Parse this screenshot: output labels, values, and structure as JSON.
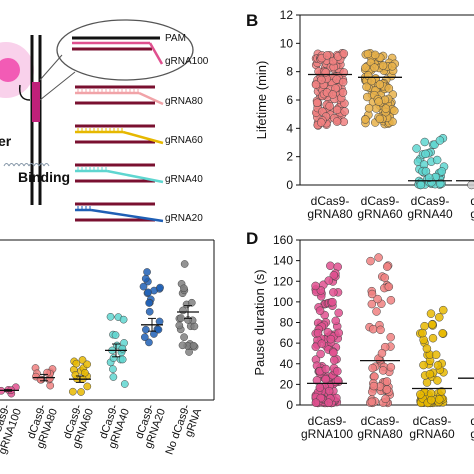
{
  "diagram": {
    "labels": [
      "PAM",
      "gRNA100",
      "gRNA80",
      "gRNA60",
      "gRNA40",
      "gRNA20"
    ],
    "left_text_1": "er",
    "left_text_2": "Binding",
    "colors": {
      "gRNA100": "#e0508f",
      "gRNA80": "#f1a3a8",
      "gRNA60": "#e6b800",
      "gRNA40": "#5fd6d0",
      "gRNA20": "#1f5fb5",
      "pam": "#111111",
      "strand": "#7a1030"
    }
  },
  "panel_letters": {
    "b": "B",
    "d": "D"
  },
  "chart_data": [
    {
      "id": "panel-B",
      "type": "scatter",
      "ylabel": "Lifetime (min)",
      "ylim": [
        0,
        12
      ],
      "yticks": [
        0,
        2,
        4,
        6,
        8,
        10,
        12
      ],
      "categories": [
        "dCas9-\ngRNA80",
        "dCas9-\ngRNA60",
        "dCas9-\ngRNA40",
        "dC\ngR"
      ],
      "series": [
        {
          "color": "#f08080",
          "mean": 7.8,
          "min": 4.2,
          "max": 9.3
        },
        {
          "color": "#e8b24a",
          "mean": 7.6,
          "min": 4.3,
          "max": 9.3
        },
        {
          "color": "#5fd6d0",
          "mean": 0.3,
          "min": 0.0,
          "max": 3.3
        },
        {
          "color": "#cccccc",
          "mean": 0.3,
          "min": 0.0,
          "max": 0.3
        }
      ]
    },
    {
      "id": "panel-C",
      "type": "scatter",
      "ylabel": "",
      "categories": [
        "dCas9-\ngRNA100",
        "dCas9-\ngRNA80",
        "dCas9-\ngRNA60",
        "dCas9-\ngRNA40",
        "dCas9-\ngRNA20",
        "No dCas9-\ngRNA"
      ],
      "series": [
        {
          "color": "#e0508f",
          "mean": 0.06,
          "min": 0.04,
          "max": 0.08
        },
        {
          "color": "#f08080",
          "mean": 0.14,
          "min": 0.09,
          "max": 0.2
        },
        {
          "color": "#e8b800",
          "mean": 0.13,
          "min": 0.05,
          "max": 0.25
        },
        {
          "color": "#5fd6d0",
          "mean": 0.31,
          "min": 0.1,
          "max": 0.52
        },
        {
          "color": "#1f5fb5",
          "mean": 0.47,
          "min": 0.36,
          "max": 0.8
        },
        {
          "color": "#808080",
          "mean": 0.55,
          "min": 0.3,
          "max": 0.85
        }
      ]
    },
    {
      "id": "panel-D",
      "type": "scatter",
      "ylabel": "Pause duration (s)",
      "ylim": [
        0,
        160
      ],
      "yticks": [
        0,
        20,
        40,
        60,
        80,
        100,
        120,
        140,
        160
      ],
      "categories": [
        "dCas9-\ngRNA100",
        "dCas9-\ngRNA80",
        "dCas9-\ngRNA60",
        "dC\ngR"
      ],
      "series": [
        {
          "color": "#e0508f",
          "mean": 21,
          "min": 2,
          "max": 135
        },
        {
          "color": "#f08080",
          "mean": 43,
          "min": 2,
          "max": 143
        },
        {
          "color": "#e8b800",
          "mean": 16,
          "min": 2,
          "max": 92
        },
        {
          "color": "#cccccc",
          "mean": 26,
          "min": 26,
          "max": 26
        }
      ]
    }
  ]
}
